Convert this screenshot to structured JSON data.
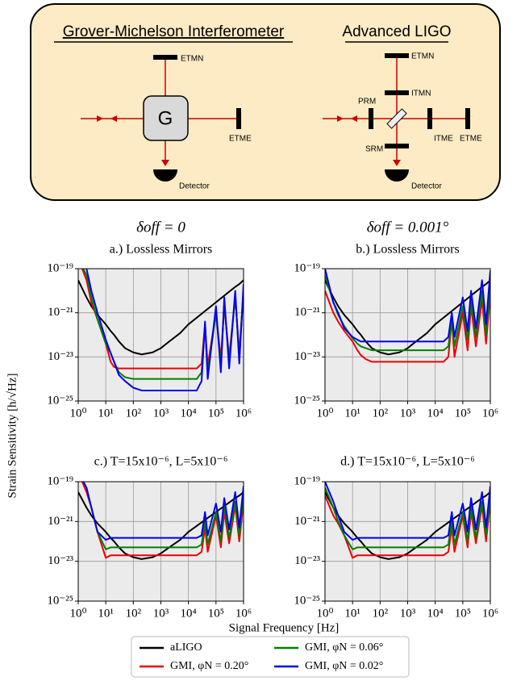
{
  "diagram": {
    "left_title": "Grover-Michelson Interferometer",
    "right_title": "Advanced LIGO",
    "left_labels": {
      "etm_n": "ETMN",
      "g": "G",
      "etm_e": "ETME",
      "detector": "Detector"
    },
    "right_labels": {
      "etm_n": "ETMN",
      "itm_n": "ITMN",
      "prm": "PRM",
      "itm_e": "ITME",
      "etm_e": "ETME",
      "srm": "SRM",
      "detector": "Detector"
    }
  },
  "figure": {
    "xlabel": "Signal Frequency [Hz]",
    "ylabel": "Strain Sensitivity [h/√Hz]"
  },
  "chart_data": [
    {
      "type": "line",
      "title": "δoff = 0",
      "subtitle": "a.) Lossless Mirrors",
      "log_x": true,
      "log_y": true,
      "grid": true,
      "xlim": [
        1,
        1000000
      ],
      "ylim": [
        1e-25,
        1e-19
      ],
      "xticks": [
        {
          "value": 1,
          "label": "10⁰"
        },
        {
          "value": 10,
          "label": "10¹"
        },
        {
          "value": 100,
          "label": "10²"
        },
        {
          "value": 1000,
          "label": "10³"
        },
        {
          "value": 10000,
          "label": "10⁴"
        },
        {
          "value": 100000,
          "label": "10⁵"
        },
        {
          "value": 1000000,
          "label": "10⁶"
        }
      ],
      "yticks": [
        {
          "value": 1e-25,
          "label": "10⁻²⁵"
        },
        {
          "value": 1e-23,
          "label": "10⁻²³"
        },
        {
          "value": 1e-21,
          "label": "10⁻²¹"
        },
        {
          "value": 1e-19,
          "label": "10⁻¹⁹"
        }
      ],
      "x": [
        1,
        2,
        3,
        5,
        10,
        15,
        20,
        30,
        50,
        100,
        200,
        500,
        1000,
        2000,
        5000,
        10000,
        20000,
        30000,
        40000,
        50000,
        100000,
        150000,
        200000,
        300000,
        500000,
        700000,
        1000000
      ],
      "series": [
        {
          "name": "aLIGO",
          "color": "#000000",
          "values": [
            3e-20,
            5e-21,
            2e-21,
            8e-22,
            3e-22,
            1.5e-22,
            1e-22,
            5e-23,
            2.5e-23,
            1.6e-23,
            1.3e-23,
            1.6e-23,
            2.5e-23,
            5e-23,
            1.2e-22,
            3e-22,
            6e-22,
            9e-22,
            1.2e-21,
            1.5e-21,
            3e-21,
            4.5e-21,
            6e-21,
            9e-21,
            1.5e-20,
            2e-20,
            3e-20
          ]
        },
        {
          "name": "GMI, φN = 0.20°",
          "color": "#ee0000",
          "values": [
            3e-19,
            3e-20,
            3e-21,
            5e-22,
            4e-23,
            6e-24,
            3.5e-24,
            3e-24,
            3e-24,
            3e-24,
            3e-24,
            3e-24,
            3e-24,
            3e-24,
            3e-24,
            3e-24,
            3e-24,
            5e-24,
            3e-22,
            4e-24,
            1e-21,
            8e-24,
            2e-21,
            1e-23,
            5e-21,
            1.5e-23,
            1e-20
          ]
        },
        {
          "name": "GMI, φN = 0.06°",
          "color": "#008000",
          "values": [
            3e-19,
            5e-20,
            5e-21,
            5e-22,
            4e-23,
            1.5e-23,
            6e-24,
            2e-24,
            1.2e-24,
            1e-24,
            1e-24,
            1e-24,
            1e-24,
            1e-24,
            1e-24,
            1e-24,
            1e-24,
            2e-24,
            3e-22,
            2e-24,
            1e-21,
            4e-24,
            3e-21,
            6e-24,
            6e-21,
            1e-23,
            1e-20
          ]
        },
        {
          "name": "GMI, φN = 0.02°",
          "color": "#0000ee",
          "values": [
            3e-19,
            1e-19,
            1e-20,
            1e-21,
            6e-23,
            1.5e-23,
            6e-24,
            1.5e-24,
            8e-25,
            4e-25,
            3e-25,
            3e-25,
            3e-25,
            3e-25,
            3e-25,
            3e-25,
            3e-25,
            8e-25,
            4e-22,
            1e-24,
            2e-21,
            2e-24,
            5e-21,
            3e-24,
            1e-20,
            5e-24,
            2e-20
          ]
        }
      ]
    },
    {
      "type": "line",
      "title": "δoff = 0.001°",
      "subtitle": "b.) Lossless Mirrors",
      "log_x": true,
      "log_y": true,
      "grid": true,
      "xlim": [
        1,
        1000000
      ],
      "ylim": [
        1e-25,
        1e-19
      ],
      "xticks": [
        {
          "value": 1,
          "label": "10⁰"
        },
        {
          "value": 10,
          "label": "10¹"
        },
        {
          "value": 100,
          "label": "10²"
        },
        {
          "value": 1000,
          "label": "10³"
        },
        {
          "value": 10000,
          "label": "10⁴"
        },
        {
          "value": 100000,
          "label": "10⁵"
        },
        {
          "value": 1000000,
          "label": "10⁶"
        }
      ],
      "yticks": [
        {
          "value": 1e-25,
          "label": "10⁻²⁵"
        },
        {
          "value": 1e-23,
          "label": "10⁻²³"
        },
        {
          "value": 1e-21,
          "label": "10⁻²¹"
        },
        {
          "value": 1e-19,
          "label": "10⁻¹⁹"
        }
      ],
      "x": [
        1,
        2,
        3,
        5,
        10,
        15,
        20,
        30,
        50,
        100,
        200,
        500,
        1000,
        2000,
        5000,
        10000,
        20000,
        30000,
        40000,
        50000,
        100000,
        150000,
        200000,
        300000,
        500000,
        700000,
        1000000
      ],
      "series": [
        {
          "name": "aLIGO",
          "color": "#000000",
          "values": [
            3e-20,
            5e-21,
            2e-21,
            8e-22,
            3e-22,
            1.5e-22,
            1e-22,
            5e-23,
            2.5e-23,
            1.6e-23,
            1.3e-23,
            1.6e-23,
            2.5e-23,
            5e-23,
            1.2e-22,
            3e-22,
            6e-22,
            9e-22,
            1.2e-21,
            1.5e-21,
            3e-21,
            4.5e-21,
            6e-21,
            9e-21,
            1.5e-20,
            2e-20,
            3e-20
          ]
        },
        {
          "name": "GMI, φN = 0.20°",
          "color": "#ee0000",
          "values": [
            1e-20,
            1e-21,
            4e-22,
            1.5e-22,
            5e-23,
            2e-23,
            1.2e-23,
            8e-24,
            6e-24,
            6e-24,
            6e-24,
            6e-24,
            6e-24,
            6e-24,
            6e-24,
            6e-24,
            6e-24,
            1e-23,
            5e-22,
            1e-23,
            1e-21,
            2e-23,
            2e-21,
            3e-23,
            4e-21,
            4e-23,
            8e-21
          ]
        },
        {
          "name": "GMI, φN = 0.06°",
          "color": "#008000",
          "values": [
            5e-20,
            3e-21,
            8e-22,
            2.5e-22,
            7e-23,
            4e-23,
            3e-23,
            2.5e-23,
            2e-23,
            2e-23,
            2e-23,
            2e-23,
            2e-23,
            2e-23,
            2e-23,
            2e-23,
            2e-23,
            3e-23,
            5e-22,
            3e-23,
            2e-21,
            6e-23,
            4e-21,
            8e-23,
            1e-20,
            1e-22,
            2e-20
          ]
        },
        {
          "name": "GMI, φN = 0.02°",
          "color": "#0000ee",
          "values": [
            1e-19,
            3e-21,
            1e-21,
            2e-22,
            8e-23,
            6e-23,
            5e-23,
            5e-23,
            5e-23,
            5e-23,
            5e-23,
            5e-23,
            5e-23,
            5e-23,
            5e-23,
            5e-23,
            5e-23,
            8e-23,
            1e-21,
            8e-23,
            5e-21,
            1.5e-22,
            1e-20,
            2e-22,
            3e-20,
            3e-22,
            8e-20
          ]
        }
      ]
    },
    {
      "type": "line",
      "title": "c.) T=15x10⁻⁶, L=5x10⁻⁶",
      "log_x": true,
      "log_y": true,
      "grid": true,
      "xlim": [
        1,
        1000000
      ],
      "ylim": [
        1e-25,
        1e-19
      ],
      "xticks": [
        {
          "value": 1,
          "label": "10⁰"
        },
        {
          "value": 10,
          "label": "10¹"
        },
        {
          "value": 100,
          "label": "10²"
        },
        {
          "value": 1000,
          "label": "10³"
        },
        {
          "value": 10000,
          "label": "10⁴"
        },
        {
          "value": 100000,
          "label": "10⁵"
        },
        {
          "value": 1000000,
          "label": "10⁶"
        }
      ],
      "yticks": [
        {
          "value": 1e-25,
          "label": "10⁻²⁵"
        },
        {
          "value": 1e-23,
          "label": "10⁻²³"
        },
        {
          "value": 1e-21,
          "label": "10⁻²¹"
        },
        {
          "value": 1e-19,
          "label": "10⁻¹⁹"
        }
      ],
      "x": [
        1,
        2,
        3,
        5,
        10,
        15,
        20,
        30,
        50,
        100,
        200,
        500,
        1000,
        2000,
        5000,
        10000,
        20000,
        30000,
        40000,
        50000,
        100000,
        150000,
        200000,
        300000,
        500000,
        700000,
        1000000
      ],
      "series": [
        {
          "name": "aLIGO",
          "color": "#000000",
          "values": [
            3e-20,
            5e-21,
            2e-21,
            8e-22,
            3e-22,
            1.5e-22,
            1e-22,
            5e-23,
            2.5e-23,
            1.6e-23,
            1.3e-23,
            1.6e-23,
            2.5e-23,
            5e-23,
            1.2e-22,
            3e-22,
            6e-22,
            9e-22,
            1.2e-21,
            1.5e-21,
            3e-21,
            4.5e-21,
            6e-21,
            9e-21,
            1.5e-20,
            2e-20,
            3e-20
          ]
        },
        {
          "name": "GMI, φN = 0.20°",
          "color": "#ee0000",
          "values": [
            3e-19,
            3e-20,
            5e-21,
            3e-22,
            1.5e-23,
            2e-23,
            2e-23,
            2e-23,
            2e-23,
            2e-23,
            2e-23,
            2e-23,
            2e-23,
            2e-23,
            2e-23,
            2e-23,
            2e-23,
            3e-23,
            5e-22,
            3e-23,
            2e-21,
            5e-23,
            3e-21,
            8e-23,
            6e-21,
            1e-22,
            1e-20
          ]
        },
        {
          "name": "GMI, φN = 0.06°",
          "color": "#008000",
          "values": [
            3e-19,
            5e-20,
            5e-21,
            3e-22,
            4e-23,
            5e-23,
            5e-23,
            5e-23,
            5e-23,
            5e-23,
            5e-23,
            5e-23,
            5e-23,
            5e-23,
            5e-23,
            5e-23,
            5e-23,
            7e-23,
            1e-21,
            7e-23,
            3e-21,
            1e-22,
            6e-21,
            1.5e-22,
            1e-20,
            2e-22,
            2e-20
          ]
        },
        {
          "name": "GMI, φN = 0.02°",
          "color": "#0000ee",
          "values": [
            3e-19,
            5e-20,
            5e-21,
            3e-22,
            1.2e-22,
            1.5e-22,
            1.5e-22,
            1.5e-22,
            1.5e-22,
            1.5e-22,
            1.5e-22,
            1.5e-22,
            1.5e-22,
            1.5e-22,
            1.5e-22,
            1.5e-22,
            1.5e-22,
            2e-22,
            3e-21,
            2e-22,
            8e-21,
            3e-22,
            1.5e-20,
            4e-22,
            3e-20,
            5e-22,
            6e-20
          ]
        }
      ]
    },
    {
      "type": "line",
      "title": "d.) T=15x10⁻⁶, L=5x10⁻⁶",
      "log_x": true,
      "log_y": true,
      "grid": true,
      "xlim": [
        1,
        1000000
      ],
      "ylim": [
        1e-25,
        1e-19
      ],
      "xticks": [
        {
          "value": 1,
          "label": "10⁰"
        },
        {
          "value": 10,
          "label": "10¹"
        },
        {
          "value": 100,
          "label": "10²"
        },
        {
          "value": 1000,
          "label": "10³"
        },
        {
          "value": 10000,
          "label": "10⁴"
        },
        {
          "value": 100000,
          "label": "10⁵"
        },
        {
          "value": 1000000,
          "label": "10⁶"
        }
      ],
      "yticks": [
        {
          "value": 1e-25,
          "label": "10⁻²⁵"
        },
        {
          "value": 1e-23,
          "label": "10⁻²³"
        },
        {
          "value": 1e-21,
          "label": "10⁻²¹"
        },
        {
          "value": 1e-19,
          "label": "10⁻¹⁹"
        }
      ],
      "x": [
        1,
        2,
        3,
        5,
        10,
        15,
        20,
        30,
        50,
        100,
        200,
        500,
        1000,
        2000,
        5000,
        10000,
        20000,
        30000,
        40000,
        50000,
        100000,
        150000,
        200000,
        300000,
        500000,
        700000,
        1000000
      ],
      "series": [
        {
          "name": "aLIGO",
          "color": "#000000",
          "values": [
            3e-20,
            5e-21,
            2e-21,
            8e-22,
            3e-22,
            1.5e-22,
            1e-22,
            5e-23,
            2.5e-23,
            1.6e-23,
            1.3e-23,
            1.6e-23,
            2.5e-23,
            5e-23,
            1.2e-22,
            3e-22,
            6e-22,
            9e-22,
            1.2e-21,
            1.5e-21,
            3e-21,
            4.5e-21,
            6e-21,
            9e-21,
            1.5e-20,
            2e-20,
            3e-20
          ]
        },
        {
          "name": "GMI, φN = 0.20°",
          "color": "#ee0000",
          "values": [
            2e-20,
            2e-21,
            8e-22,
            2e-22,
            1.5e-23,
            2e-23,
            2e-23,
            2e-23,
            2e-23,
            2e-23,
            2e-23,
            2e-23,
            2e-23,
            2e-23,
            2e-23,
            2e-23,
            2e-23,
            3e-23,
            5e-22,
            3e-23,
            2e-21,
            5e-23,
            3e-21,
            8e-23,
            6e-21,
            1e-22,
            1e-20
          ]
        },
        {
          "name": "GMI, φN = 0.06°",
          "color": "#008000",
          "values": [
            5e-20,
            5e-21,
            1e-21,
            2e-22,
            4e-23,
            5e-23,
            5e-23,
            5e-23,
            5e-23,
            5e-23,
            5e-23,
            5e-23,
            5e-23,
            5e-23,
            5e-23,
            5e-23,
            5e-23,
            7e-23,
            1e-21,
            7e-23,
            3e-21,
            1e-22,
            6e-21,
            1.5e-22,
            1e-20,
            2e-22,
            2e-20
          ]
        },
        {
          "name": "GMI, φN = 0.02°",
          "color": "#0000ee",
          "values": [
            1e-19,
            1e-20,
            2e-21,
            3e-22,
            1.2e-22,
            1.5e-22,
            1.5e-22,
            1.5e-22,
            1.5e-22,
            1.5e-22,
            1.5e-22,
            1.5e-22,
            1.5e-22,
            1.5e-22,
            1.5e-22,
            1.5e-22,
            1.5e-22,
            2e-22,
            3e-21,
            2e-22,
            8e-21,
            3e-22,
            1.5e-20,
            4e-22,
            3e-20,
            5e-22,
            6e-20
          ]
        }
      ]
    }
  ]
}
